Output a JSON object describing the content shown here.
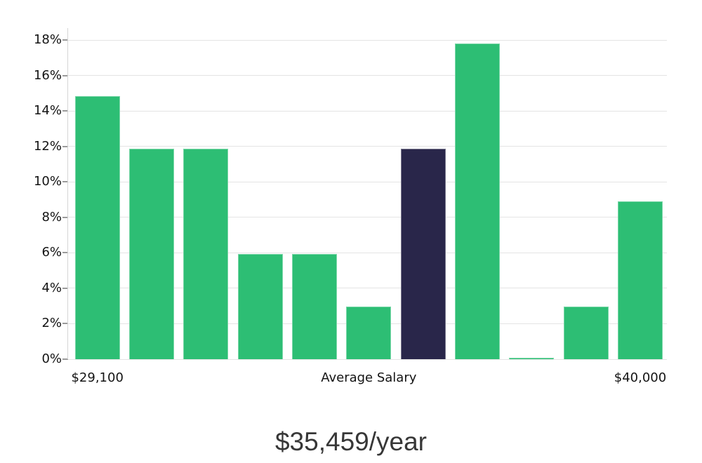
{
  "chart_data": {
    "type": "bar",
    "title": "$35,459/year",
    "grid": true,
    "legend": false,
    "y_axis": {
      "unit": "%",
      "min": 0,
      "max": 18,
      "step": 2,
      "ticks": [
        {
          "value": 0,
          "label": "0%"
        },
        {
          "value": 2,
          "label": "2%"
        },
        {
          "value": 4,
          "label": "4%"
        },
        {
          "value": 6,
          "label": "6%"
        },
        {
          "value": 8,
          "label": "8%"
        },
        {
          "value": 10,
          "label": "10%"
        },
        {
          "value": 12,
          "label": "12%"
        },
        {
          "value": 14,
          "label": "14%"
        },
        {
          "value": 16,
          "label": "16%"
        },
        {
          "value": 18,
          "label": "18%"
        }
      ]
    },
    "x_axis_tick_labels": [
      {
        "label": "$29,100",
        "bar_index": 0
      },
      {
        "label": "Average Salary",
        "bar_index": 5
      },
      {
        "label": "$40,000",
        "bar_index": 10
      }
    ],
    "bars": [
      {
        "value": 14.85,
        "highlight": false
      },
      {
        "value": 11.88,
        "highlight": false
      },
      {
        "value": 11.88,
        "highlight": false
      },
      {
        "value": 5.94,
        "highlight": false
      },
      {
        "value": 5.94,
        "highlight": false
      },
      {
        "value": 2.97,
        "highlight": false
      },
      {
        "value": 11.88,
        "highlight": true
      },
      {
        "value": 17.82,
        "highlight": false
      },
      {
        "value": 0.1,
        "highlight": false
      },
      {
        "value": 2.97,
        "highlight": false
      },
      {
        "value": 8.91,
        "highlight": false
      }
    ],
    "colors": {
      "bar": "#2dbe74",
      "highlight": "#29264a",
      "gridline": "#e4e4e4",
      "axis_line": "#d6d6d6",
      "tick": "#9a9a9a",
      "tick_label": "#141414",
      "title": "#373737",
      "background": "#ffffff"
    }
  }
}
